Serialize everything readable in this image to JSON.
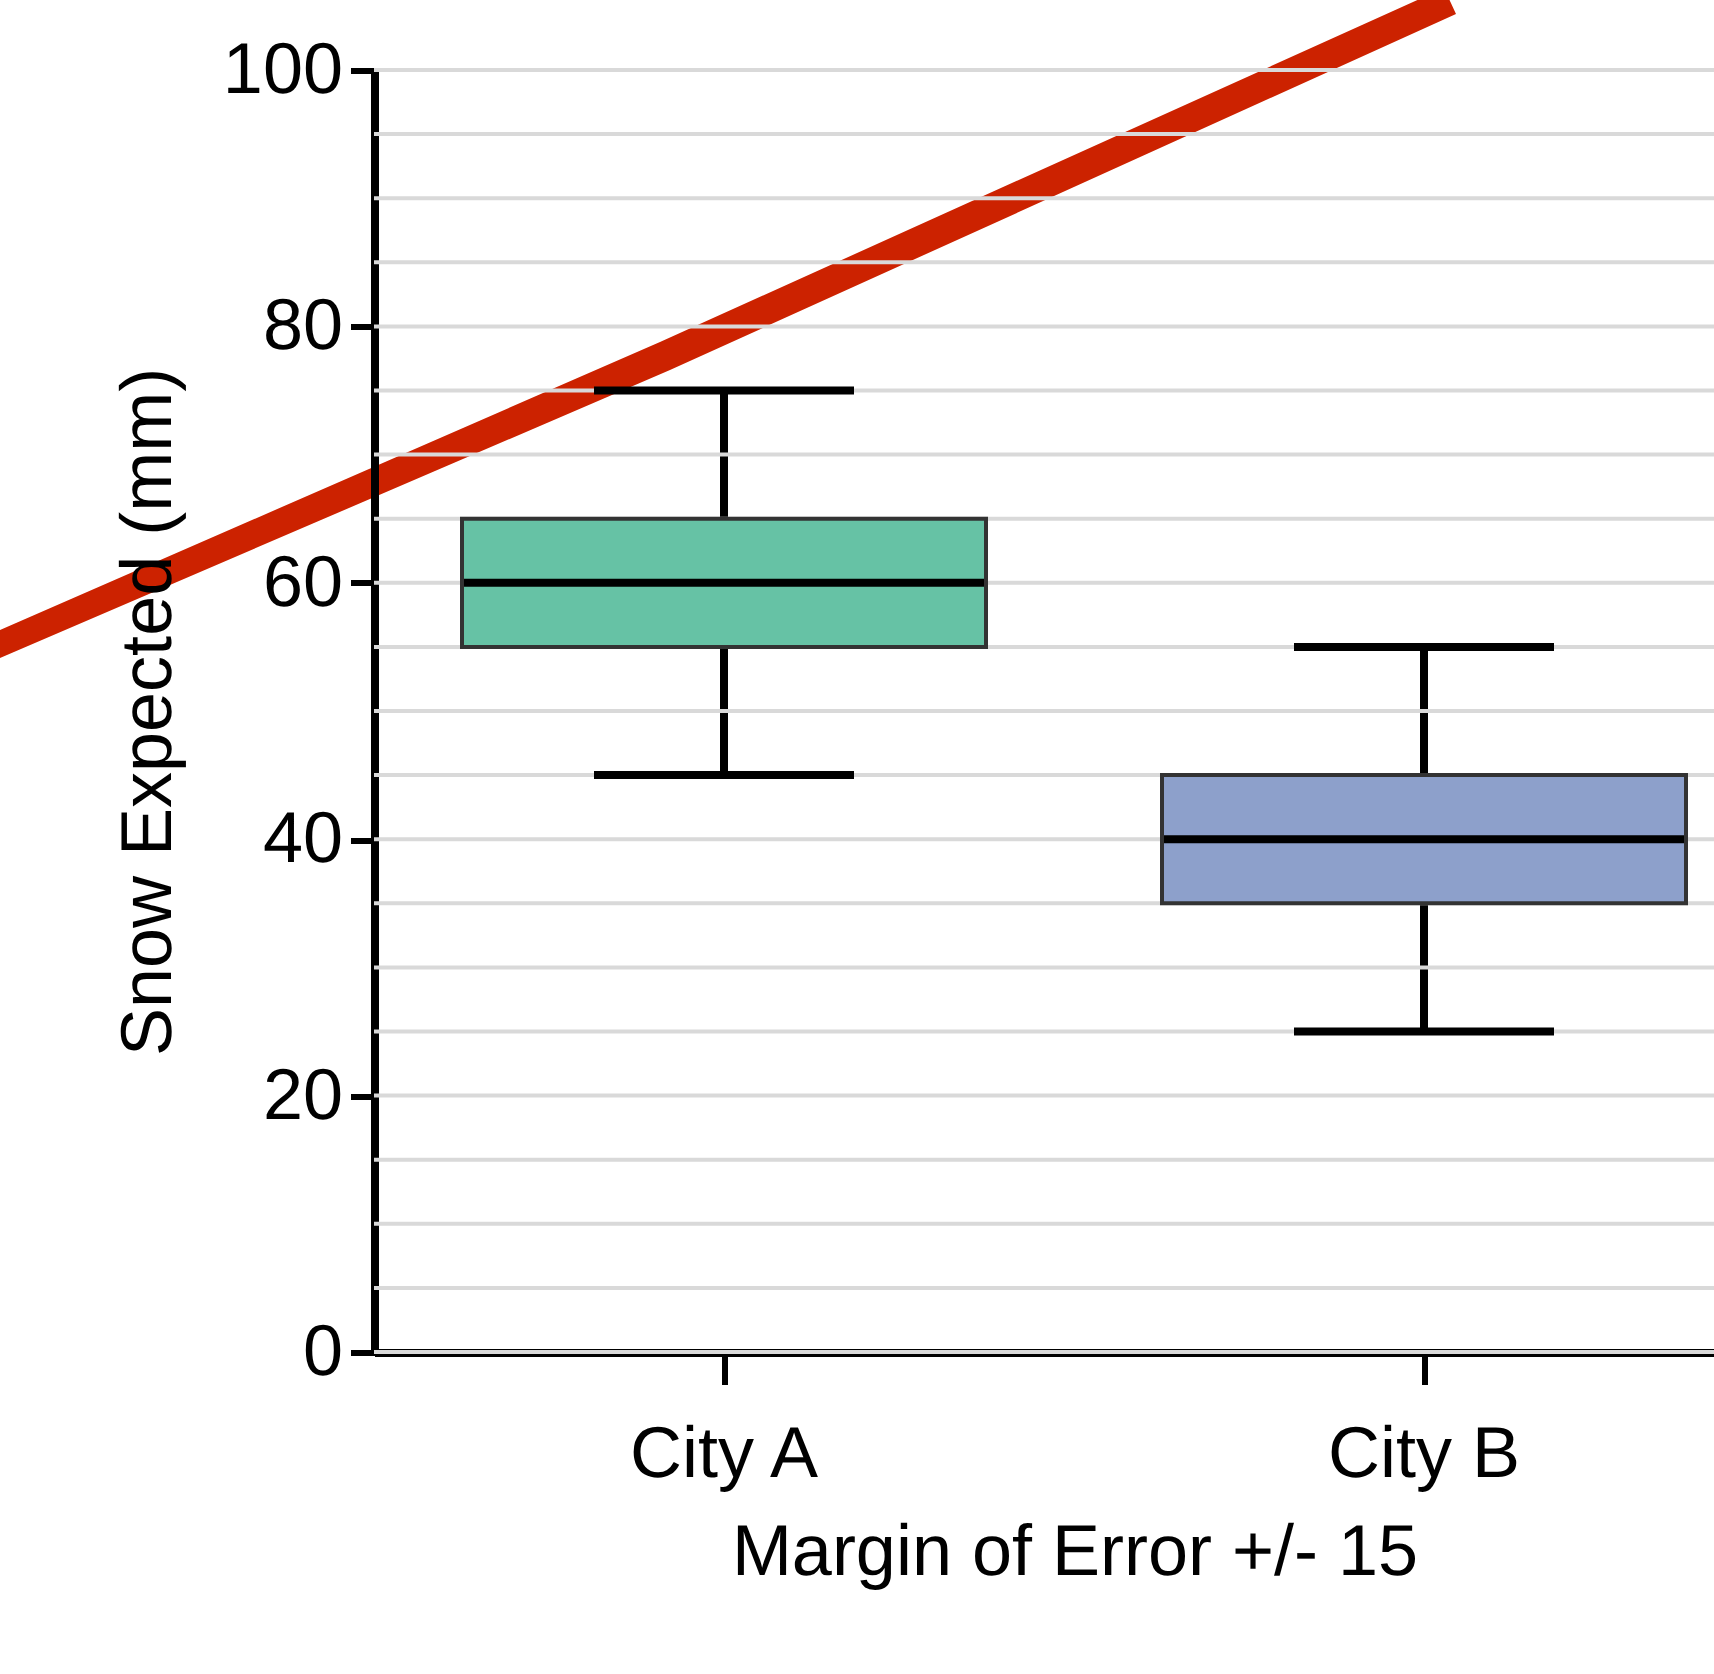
{
  "chart_data": {
    "type": "box",
    "categories": [
      "City A",
      "City B"
    ],
    "colors": [
      "#66c2a5",
      "#8da0cb"
    ],
    "boxes": [
      {
        "low": 45,
        "q1": 55,
        "median": 60,
        "q3": 65,
        "high": 75
      },
      {
        "low": 25,
        "q1": 35,
        "median": 40,
        "q3": 45,
        "high": 55
      }
    ],
    "xlabel": "Margin of Error +/- 15",
    "ylabel": "Snow Expected (mm)",
    "ylim": [
      0,
      100
    ],
    "yticks": [
      0,
      {
        "value": 5,
        "label": null
      },
      {
        "value": 10,
        "label": null
      },
      {
        "value": 15,
        "label": null
      },
      20,
      {
        "value": 25,
        "label": null
      },
      {
        "value": 30,
        "label": null
      },
      {
        "value": 35,
        "label": null
      },
      40,
      {
        "value": 45,
        "label": null
      },
      {
        "value": 50,
        "label": null
      },
      {
        "value": 55,
        "label": null
      },
      60,
      {
        "value": 65,
        "label": null
      },
      {
        "value": 70,
        "label": null
      },
      {
        "value": 75,
        "label": null
      },
      80,
      {
        "value": 85,
        "label": null
      },
      {
        "value": 90,
        "label": null
      },
      {
        "value": 95,
        "label": null
      },
      100
    ],
    "grid": true
  }
}
